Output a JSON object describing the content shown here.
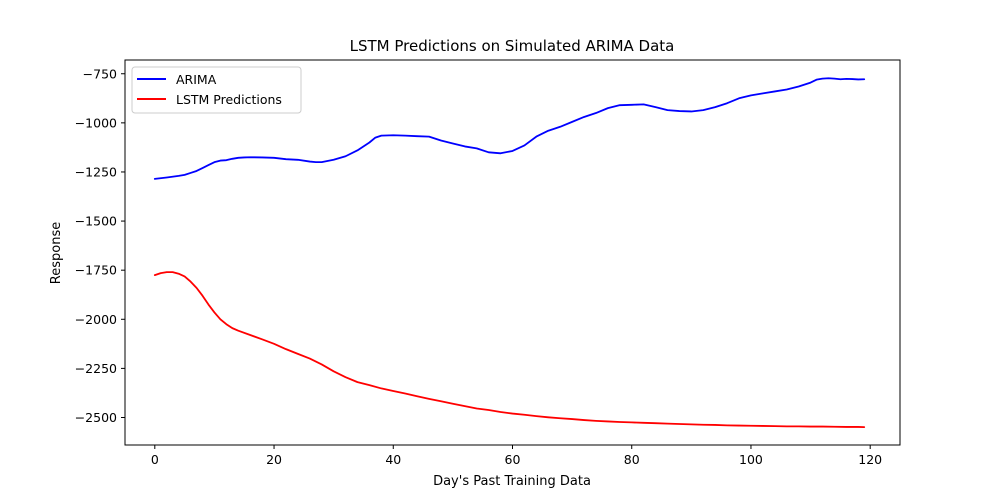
{
  "chart_data": {
    "type": "line",
    "title": "LSTM Predictions on Simulated ARIMA Data",
    "xlabel": "Day's Past Training Data",
    "ylabel": "Response",
    "xlim": [
      -5,
      125
    ],
    "ylim": [
      -2640,
      -680
    ],
    "xticks": [
      0,
      20,
      40,
      60,
      80,
      100,
      120
    ],
    "xtick_labels": [
      "0",
      "20",
      "40",
      "60",
      "80",
      "100",
      "120"
    ],
    "yticks": [
      -750,
      -1000,
      -1250,
      -1500,
      -1750,
      -2000,
      -2250,
      -2500
    ],
    "ytick_labels": [
      "−750",
      "−1000",
      "−1250",
      "−1500",
      "−1750",
      "−2000",
      "−2250",
      "−2500"
    ],
    "grid": false,
    "legend_position": "top-left",
    "series": [
      {
        "name": "ARIMA",
        "color": "#0000ff",
        "x": [
          0,
          2,
          4,
          5,
          6,
          7,
          8,
          9,
          10,
          11,
          12,
          13,
          14,
          15,
          16,
          18,
          20,
          22,
          24,
          26,
          27,
          28,
          30,
          32,
          34,
          36,
          37,
          38,
          40,
          42,
          44,
          46,
          48,
          50,
          52,
          54,
          56,
          58,
          60,
          62,
          64,
          66,
          68,
          70,
          72,
          74,
          76,
          78,
          80,
          82,
          84,
          86,
          88,
          90,
          92,
          94,
          96,
          98,
          100,
          102,
          104,
          106,
          108,
          110,
          111,
          112,
          113,
          114,
          115,
          116,
          117,
          118,
          119
        ],
        "values": [
          -1285,
          -1278,
          -1270,
          -1265,
          -1255,
          -1245,
          -1230,
          -1215,
          -1200,
          -1192,
          -1190,
          -1183,
          -1178,
          -1176,
          -1175,
          -1176,
          -1178,
          -1185,
          -1188,
          -1197,
          -1200,
          -1200,
          -1188,
          -1170,
          -1140,
          -1100,
          -1075,
          -1065,
          -1063,
          -1065,
          -1068,
          -1070,
          -1090,
          -1105,
          -1120,
          -1130,
          -1150,
          -1155,
          -1143,
          -1115,
          -1070,
          -1040,
          -1020,
          -995,
          -970,
          -950,
          -925,
          -910,
          -908,
          -906,
          -920,
          -935,
          -940,
          -942,
          -935,
          -920,
          -900,
          -875,
          -860,
          -850,
          -840,
          -830,
          -815,
          -795,
          -780,
          -775,
          -773,
          -775,
          -778,
          -776,
          -777,
          -779,
          -778
        ]
      },
      {
        "name": "LSTM Predictions",
        "color": "#ff0000",
        "x": [
          0,
          1,
          2,
          3,
          4,
          5,
          6,
          7,
          8,
          9,
          10,
          11,
          12,
          13,
          14,
          16,
          18,
          20,
          22,
          24,
          26,
          28,
          30,
          32,
          34,
          36,
          38,
          40,
          42,
          44,
          46,
          48,
          50,
          52,
          54,
          56,
          58,
          60,
          62,
          64,
          66,
          68,
          70,
          72,
          74,
          76,
          78,
          80,
          82,
          84,
          86,
          88,
          90,
          92,
          94,
          96,
          98,
          100,
          102,
          104,
          106,
          108,
          110,
          112,
          114,
          116,
          118,
          119
        ],
        "values": [
          -1775,
          -1765,
          -1760,
          -1760,
          -1768,
          -1782,
          -1808,
          -1840,
          -1880,
          -1925,
          -1965,
          -2000,
          -2025,
          -2045,
          -2058,
          -2080,
          -2102,
          -2125,
          -2152,
          -2176,
          -2200,
          -2230,
          -2265,
          -2295,
          -2320,
          -2335,
          -2352,
          -2365,
          -2378,
          -2392,
          -2405,
          -2417,
          -2430,
          -2442,
          -2454,
          -2462,
          -2472,
          -2480,
          -2486,
          -2493,
          -2499,
          -2504,
          -2508,
          -2513,
          -2517,
          -2520,
          -2523,
          -2525,
          -2527,
          -2529,
          -2531,
          -2533,
          -2535,
          -2537,
          -2538,
          -2540,
          -2541,
          -2542,
          -2543,
          -2544,
          -2545,
          -2545,
          -2546,
          -2546,
          -2547,
          -2548,
          -2548,
          -2549
        ]
      }
    ]
  }
}
